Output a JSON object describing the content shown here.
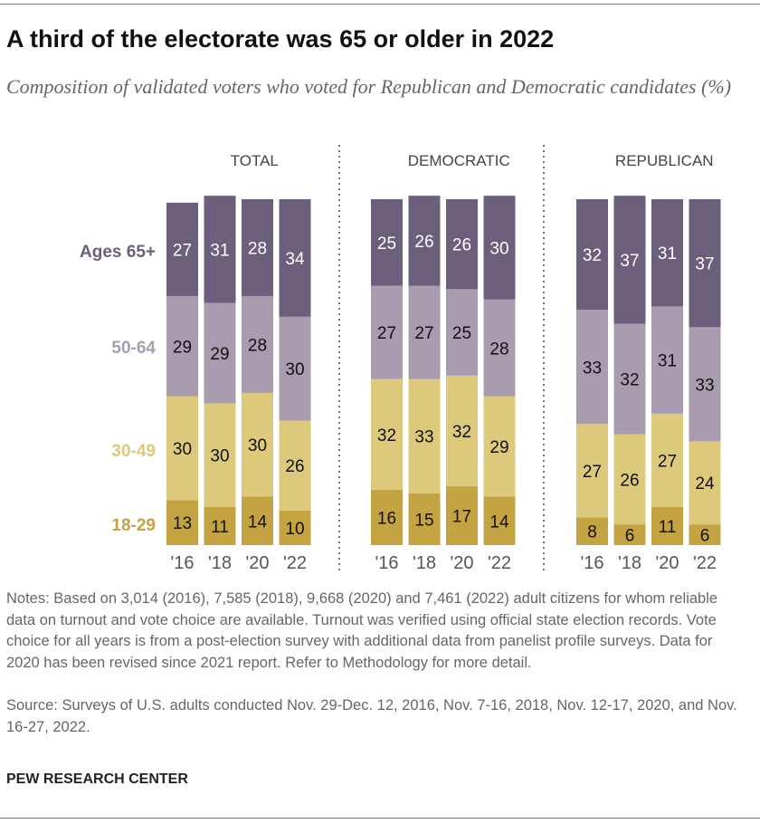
{
  "title": "A third of the electorate was 65 or older in 2022",
  "subtitle": "Composition of validated voters who voted for Republican and Democratic candidates (%)",
  "notes": "Notes: Based on 3,014 (2016), 7,585 (2018), 9,668 (2020) and 7,461 (2022) adult citizens for whom reliable data on turnout and vote choice are available. Turnout was verified using official state election records. Vote choice for all years is from a post-election survey with additional data from panelist profile surveys. Data for 2020 has been revised since 2021 report. Refer to Methodology for more detail.",
  "source": "Source: Surveys of U.S. adults conducted Nov. 29-Dec. 12, 2016, Nov. 7-16, 2018, Nov. 12-17, 2020, and Nov. 16-27, 2022.",
  "brand": "PEW RESEARCH CENTER",
  "chart_data": {
    "type": "stacked-bar",
    "categories": [
      "'16",
      "'18",
      "'20",
      "'22"
    ],
    "series_labels": [
      "Ages 65+",
      "50-64",
      "30-49",
      "18-29"
    ],
    "colors": {
      "Ages 65+": "#6b5f7b",
      "50-64": "#a89cae",
      "30-49": "#dcc97c",
      "18-29": "#c4a343"
    },
    "panels": [
      {
        "title": "TOTAL",
        "series": [
          {
            "name": "18-29",
            "values": [
              13,
              11,
              14,
              10
            ]
          },
          {
            "name": "30-49",
            "values": [
              30,
              30,
              30,
              26
            ]
          },
          {
            "name": "50-64",
            "values": [
              29,
              29,
              28,
              30
            ]
          },
          {
            "name": "Ages 65+",
            "values": [
              27,
              31,
              28,
              34
            ]
          }
        ]
      },
      {
        "title": "DEMOCRATIC",
        "series": [
          {
            "name": "18-29",
            "values": [
              16,
              15,
              17,
              14
            ]
          },
          {
            "name": "30-49",
            "values": [
              32,
              33,
              32,
              29
            ]
          },
          {
            "name": "50-64",
            "values": [
              27,
              27,
              25,
              28
            ]
          },
          {
            "name": "Ages 65+",
            "values": [
              25,
              26,
              26,
              30
            ]
          }
        ]
      },
      {
        "title": "REPUBLICAN",
        "series": [
          {
            "name": "18-29",
            "values": [
              8,
              6,
              11,
              6
            ]
          },
          {
            "name": "30-49",
            "values": [
              27,
              26,
              27,
              24
            ]
          },
          {
            "name": "50-64",
            "values": [
              33,
              32,
              31,
              33
            ]
          },
          {
            "name": "Ages 65+",
            "values": [
              32,
              37,
              31,
              37
            ]
          }
        ]
      }
    ]
  }
}
